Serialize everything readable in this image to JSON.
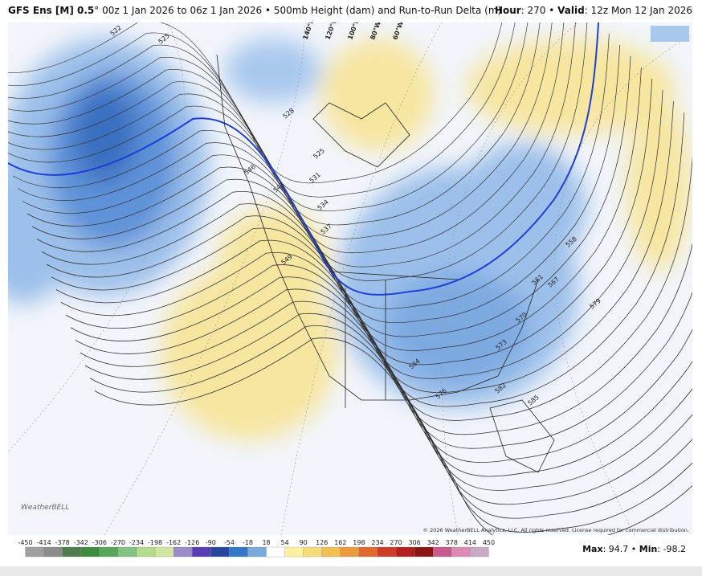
{
  "header": {
    "title_bold": "GFS Ens [M] 0.5",
    "title_rest": "° 00z 1 Jan 2026 to 06z 1 Jan 2026 • 500mb Height (dam) and Run-to-Run Delta (m)",
    "hour_label": "Hour",
    "hour_text": ": 270 • ",
    "valid_label": "Valid",
    "valid_text": ": 12z Mon 12 Jan 2026"
  },
  "map": {
    "contour_labels": [
      522,
      525,
      528,
      525,
      531,
      543,
      546,
      534,
      537,
      549,
      558,
      561,
      567,
      564,
      570,
      573,
      579,
      576,
      582,
      585
    ],
    "meridian_labels": [
      "140°W",
      "120°W",
      "100°W",
      "80°W",
      "60°W"
    ],
    "copyright": "© 2026 WeatherBELL Analytics, LLC. All rights reserved. License required for commercial distribution.",
    "logo": "WeatherBELL"
  },
  "colorbar": {
    "ticks": [
      -450,
      -414,
      -378,
      -342,
      -306,
      -270,
      -234,
      -198,
      -162,
      -126,
      -90,
      -54,
      -18,
      18,
      54,
      90,
      126,
      162,
      198,
      234,
      270,
      306,
      342,
      378,
      414,
      450
    ],
    "colors": [
      "#a0a0a0",
      "#8c8c8c",
      "#4e7c4e",
      "#3c8c3c",
      "#5aa55a",
      "#82c282",
      "#b4dc8c",
      "#d2e6a0",
      "#9b8cc8",
      "#5a3cb4",
      "#2846a0",
      "#3278c8",
      "#78aadc",
      "#ffffff",
      "#fff0a0",
      "#f5dc78",
      "#f0c050",
      "#eb9b3c",
      "#e1692d",
      "#cd3c28",
      "#b41e1e",
      "#8c1414",
      "#c85a8c",
      "#dc8cb4",
      "#c8aac8"
    ]
  },
  "stats": {
    "max_label": "Max",
    "max_text": ": 94.7 • ",
    "min_label": "Min",
    "min_text": ": -98.2"
  }
}
